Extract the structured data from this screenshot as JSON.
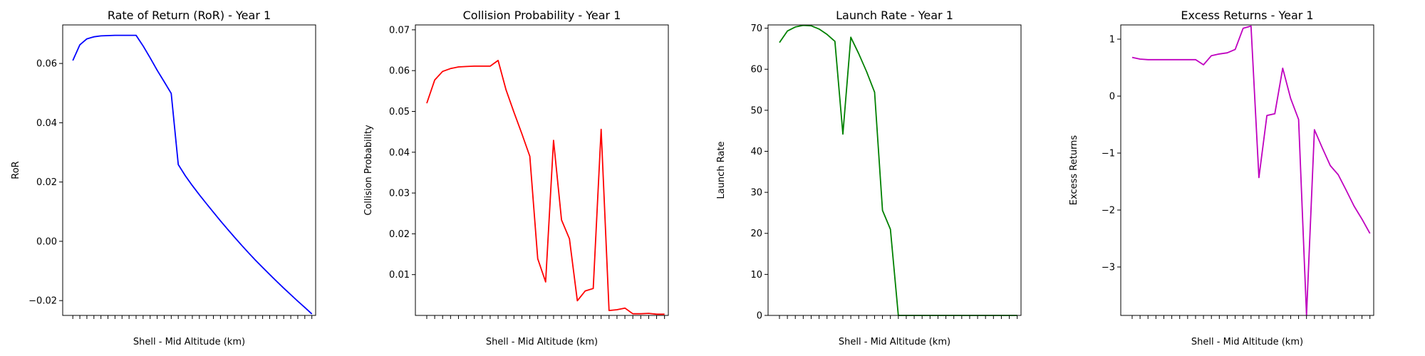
{
  "chart_data": [
    {
      "type": "line",
      "title": "Rate of Return (RoR) - Year 1",
      "xlabel": "Shell - Mid Altitude (km)",
      "ylabel": "RoR",
      "color": "#0000ff",
      "ylim": [
        -0.025,
        0.073
      ],
      "yticks": [
        -0.02,
        0.0,
        0.02,
        0.04,
        0.06
      ],
      "ytick_labels": [
        "−0.02",
        "0.00",
        "0.02",
        "0.04",
        "0.06"
      ],
      "values": [
        0.061,
        0.0663,
        0.0683,
        0.069,
        0.0693,
        0.0694,
        0.0695,
        0.0695,
        0.0695,
        0.0695,
        0.0659,
        0.0619,
        0.0577,
        0.0538,
        0.0499,
        0.0259,
        0.0221,
        0.0188,
        0.0157,
        0.0127,
        0.0098,
        0.0069,
        0.0041,
        0.0014,
        -0.0013,
        -0.0039,
        -0.0064,
        -0.0088,
        -0.0112,
        -0.0135,
        -0.0158,
        -0.018,
        -0.0202,
        -0.0223,
        -0.0245
      ]
    },
    {
      "type": "line",
      "title": "Collision Probability - Year 1",
      "xlabel": "Shell - Mid Altitude (km)",
      "ylabel": "Collision Probability",
      "color": "#ff0000",
      "ylim": [
        0,
        0.0712
      ],
      "yticks": [
        0.01,
        0.02,
        0.03,
        0.04,
        0.05,
        0.06,
        0.07
      ],
      "ytick_labels": [
        "0.01",
        "0.02",
        "0.03",
        "0.04",
        "0.05",
        "0.06",
        "0.07"
      ],
      "values": [
        0.052,
        0.0577,
        0.0598,
        0.0605,
        0.0609,
        0.061,
        0.0611,
        0.0611,
        0.0611,
        0.0625,
        0.0553,
        0.0498,
        0.0445,
        0.039,
        0.0139,
        0.0082,
        0.0429,
        0.0234,
        0.0188,
        0.0036,
        0.006,
        0.0066,
        0.0456,
        0.0012,
        0.0014,
        0.0018,
        0.0004,
        0.0004,
        0.0005,
        0.0003,
        0.0003
      ]
    },
    {
      "type": "line",
      "title": "Launch Rate - Year 1",
      "xlabel": "Shell - Mid Altitude (km)",
      "ylabel": "Launch Rate",
      "color": "#008000",
      "ylim": [
        0,
        70.8
      ],
      "yticks": [
        0,
        10,
        20,
        30,
        40,
        50,
        60,
        70
      ],
      "ytick_labels": [
        "0",
        "10",
        "20",
        "30",
        "40",
        "50",
        "60",
        "70"
      ],
      "values": [
        66.5,
        69.3,
        70.3,
        70.7,
        70.6,
        69.8,
        68.5,
        66.8,
        44.2,
        67.8,
        63.8,
        59.4,
        54.4,
        25.6,
        21,
        0,
        0,
        0,
        0,
        0,
        0,
        0,
        0,
        0,
        0,
        0,
        0,
        0,
        0,
        0,
        0
      ]
    },
    {
      "type": "line",
      "title": "Excess Returns - Year 1",
      "xlabel": "Shell - Mid Altitude (km)",
      "ylabel": "Excess Returns",
      "color": "#bf00bf",
      "ylim": [
        -3.85,
        1.25
      ],
      "yticks": [
        -3,
        -2,
        -1,
        0,
        1
      ],
      "ytick_labels": [
        "−3",
        "−2",
        "−1",
        "0",
        "1"
      ],
      "values": [
        0.68,
        0.65,
        0.64,
        0.64,
        0.64,
        0.64,
        0.64,
        0.64,
        0.64,
        0.55,
        0.71,
        0.74,
        0.76,
        0.82,
        1.19,
        1.23,
        -1.43,
        -0.34,
        -0.31,
        0.49,
        -0.04,
        -0.41,
        -3.85,
        -0.59,
        -0.91,
        -1.22,
        -1.38,
        -1.65,
        -1.93,
        -2.16,
        -2.41
      ]
    }
  ]
}
